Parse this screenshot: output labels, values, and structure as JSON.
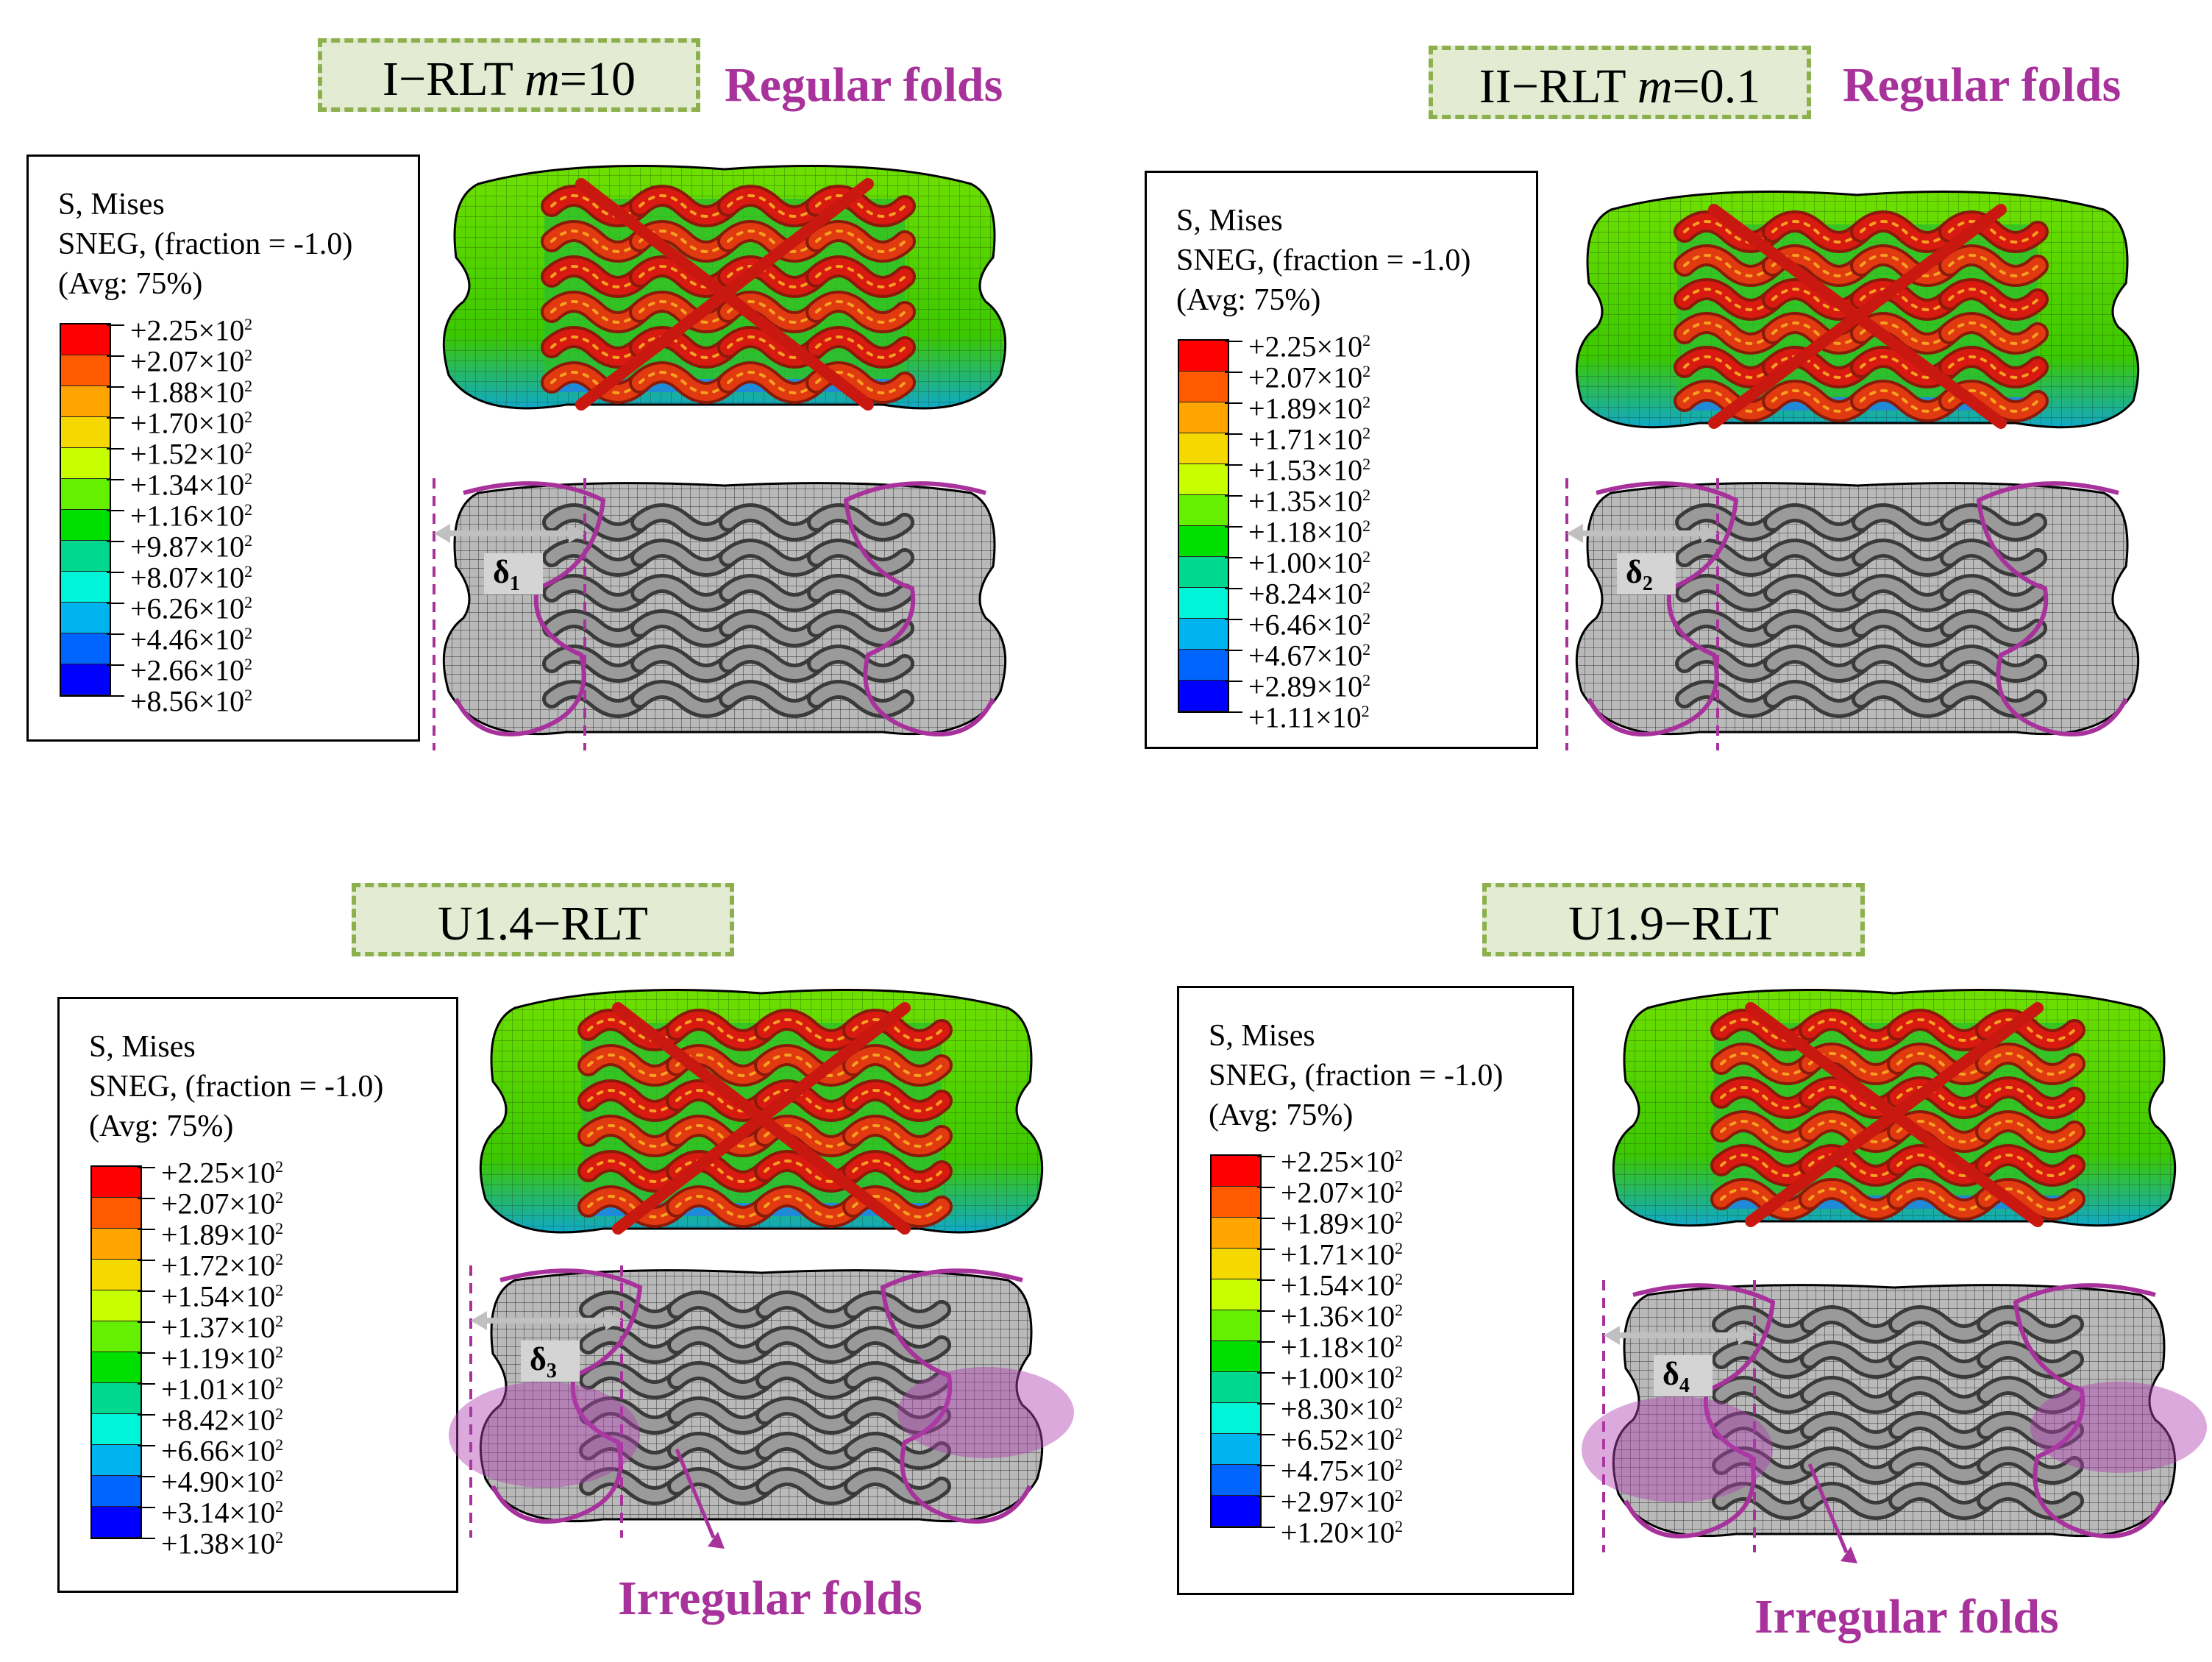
{
  "legend_header": [
    "S, Mises",
    "SNEG, (fraction = -1.0)",
    "(Avg: 75%)"
  ],
  "legend_colors": [
    "#ff0000",
    "#ff5a00",
    "#ffa500",
    "#f5d800",
    "#c8ff00",
    "#64f000",
    "#00e000",
    "#00d890",
    "#00f5d8",
    "#00b4f0",
    "#0064ff",
    "#0000ff"
  ],
  "panels": [
    {
      "title": "I−RLT",
      "title_param": "m",
      "title_value": "=10",
      "fold_label": "Regular folds",
      "delta": "δ",
      "delta_sub": "1",
      "legend_values": [
        "+2.25×10",
        "+2.07×10",
        "+1.88×10",
        "+1.70×10",
        "+1.52×10",
        "+1.34×10",
        "+1.16×10",
        "+9.87×10",
        "+8.07×10",
        "+6.26×10",
        "+4.46×10",
        "+2.66×10",
        "+8.56×10"
      ],
      "exponent": "2"
    },
    {
      "title": "II−RLT",
      "title_param": "m",
      "title_value": "=0.1",
      "fold_label": "Regular folds",
      "delta": "δ",
      "delta_sub": "2",
      "legend_values": [
        "+2.25×10",
        "+2.07×10",
        "+1.89×10",
        "+1.71×10",
        "+1.53×10",
        "+1.35×10",
        "+1.18×10",
        "+1.00×10",
        "+8.24×10",
        "+6.46×10",
        "+4.67×10",
        "+2.89×10",
        "+1.11×10"
      ],
      "exponent": "2"
    },
    {
      "title": "U1.4−RLT",
      "title_param": "",
      "title_value": "",
      "fold_label": "Irregular folds",
      "delta": "δ",
      "delta_sub": "3",
      "legend_values": [
        "+2.25×10",
        "+2.07×10",
        "+1.89×10",
        "+1.72×10",
        "+1.54×10",
        "+1.37×10",
        "+1.19×10",
        "+1.01×10",
        "+8.42×10",
        "+6.66×10",
        "+4.90×10",
        "+3.14×10",
        "+1.38×10"
      ],
      "exponent": "2"
    },
    {
      "title": "U1.9−RLT",
      "title_param": "",
      "title_value": "",
      "fold_label": "Irregular folds",
      "delta": "δ",
      "delta_sub": "4",
      "legend_values": [
        "+2.25×10",
        "+2.07×10",
        "+1.89×10",
        "+1.71×10",
        "+1.54×10",
        "+1.36×10",
        "+1.18×10",
        "+1.00×10",
        "+8.30×10",
        "+6.52×10",
        "+4.75×10",
        "+2.97×10",
        "+1.20×10"
      ],
      "exponent": "2"
    }
  ]
}
